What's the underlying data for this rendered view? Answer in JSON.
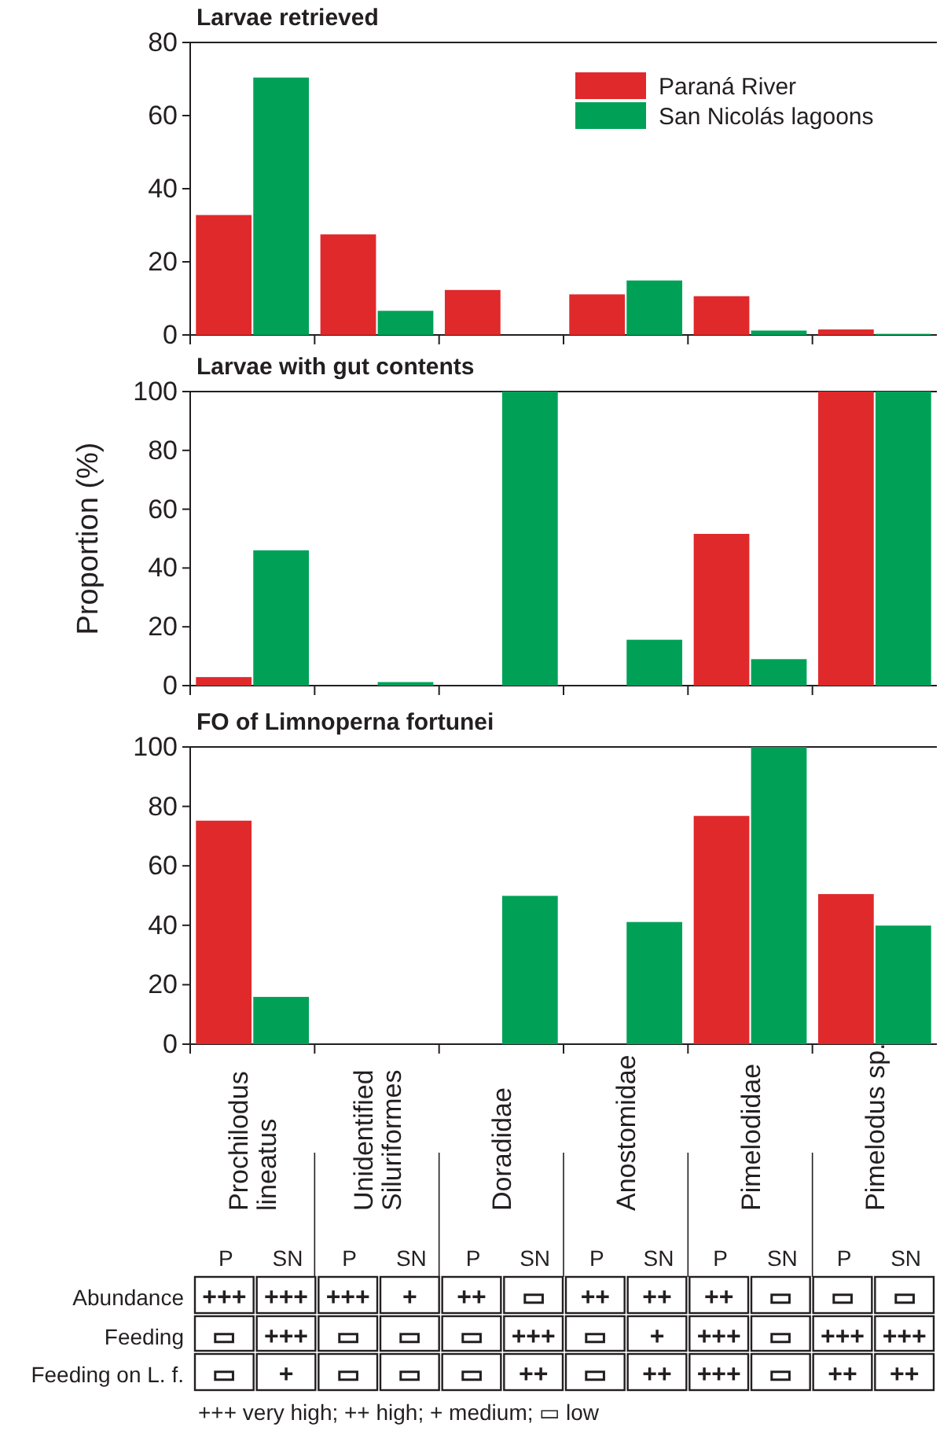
{
  "chart_data": [
    {
      "type": "bar",
      "title": "Larvae retrieved",
      "series": [
        {
          "name": "Paraná River",
          "color": "#e0292b",
          "values": [
            32.8,
            27.5,
            12.3,
            11.1,
            10.6,
            1.5
          ]
        },
        {
          "name": "San Nicolás lagoons",
          "color": "#00a157",
          "values": [
            70.4,
            6.6,
            0,
            14.9,
            1.2,
            0.3
          ]
        }
      ],
      "ylim": [
        0,
        80
      ],
      "yticks": [
        0,
        20,
        40,
        60,
        80
      ],
      "tick_labels": "y",
      "legend": "top right"
    },
    {
      "type": "bar",
      "title": "Larvae with gut contents",
      "ylabel": "Proportion (%)",
      "series": [
        {
          "color": "#e0292b",
          "values": [
            2.9,
            0,
            0,
            0,
            51.6,
            100
          ]
        },
        {
          "color": "#00a157",
          "values": [
            46,
            1.2,
            100,
            15.6,
            9,
            100
          ]
        }
      ],
      "ylim": [
        0,
        100
      ],
      "yticks": [
        0,
        20,
        40,
        60,
        80,
        100
      ],
      "tick_labels": "y"
    },
    {
      "type": "bar",
      "title": "FO of Limnoperna fortunei",
      "categories": [
        "Prochilodus lineatus",
        "Unidentified Siluriformes",
        "Doradidae",
        "Anostomidae",
        "Pimelodidae",
        "Pimelodus sp."
      ],
      "series": [
        {
          "color": "#e0292b",
          "values": [
            75.2,
            0,
            0,
            0,
            76.8,
            50.5
          ]
        },
        {
          "color": "#00a157",
          "values": [
            15.9,
            0,
            49.9,
            41.1,
            100,
            39.9
          ]
        }
      ],
      "ylim": [
        0,
        100
      ],
      "yticks": [
        0,
        20,
        40,
        60,
        80,
        100
      ]
    },
    {
      "type": "other",
      "categories": [
        "P",
        "SN",
        "P",
        "SN",
        "P",
        "SN",
        "P",
        "SN",
        "P",
        "SN",
        "P",
        "SN"
      ],
      "y_categories": [
        "Abundance",
        "Feeding",
        "Feeding on L. f."
      ],
      "cell_labels": [
        [
          "+++",
          "+++",
          "+++",
          "+",
          "++",
          "▭",
          "++",
          "++",
          "++",
          "▭",
          "▭",
          "▭"
        ],
        [
          "▭",
          "+++",
          "▭",
          "▭",
          "▭",
          "+++",
          "▭",
          "+",
          "+++",
          "▭",
          "+++",
          "+++"
        ],
        [
          "▭",
          "+",
          "▭",
          "▭",
          "▭",
          "++",
          "▭",
          "++",
          "+++",
          "▭",
          "++",
          "++"
        ]
      ],
      "annotations": [
        "+++ very high; ++ high; + medium; ▭ low"
      ]
    }
  ]
}
